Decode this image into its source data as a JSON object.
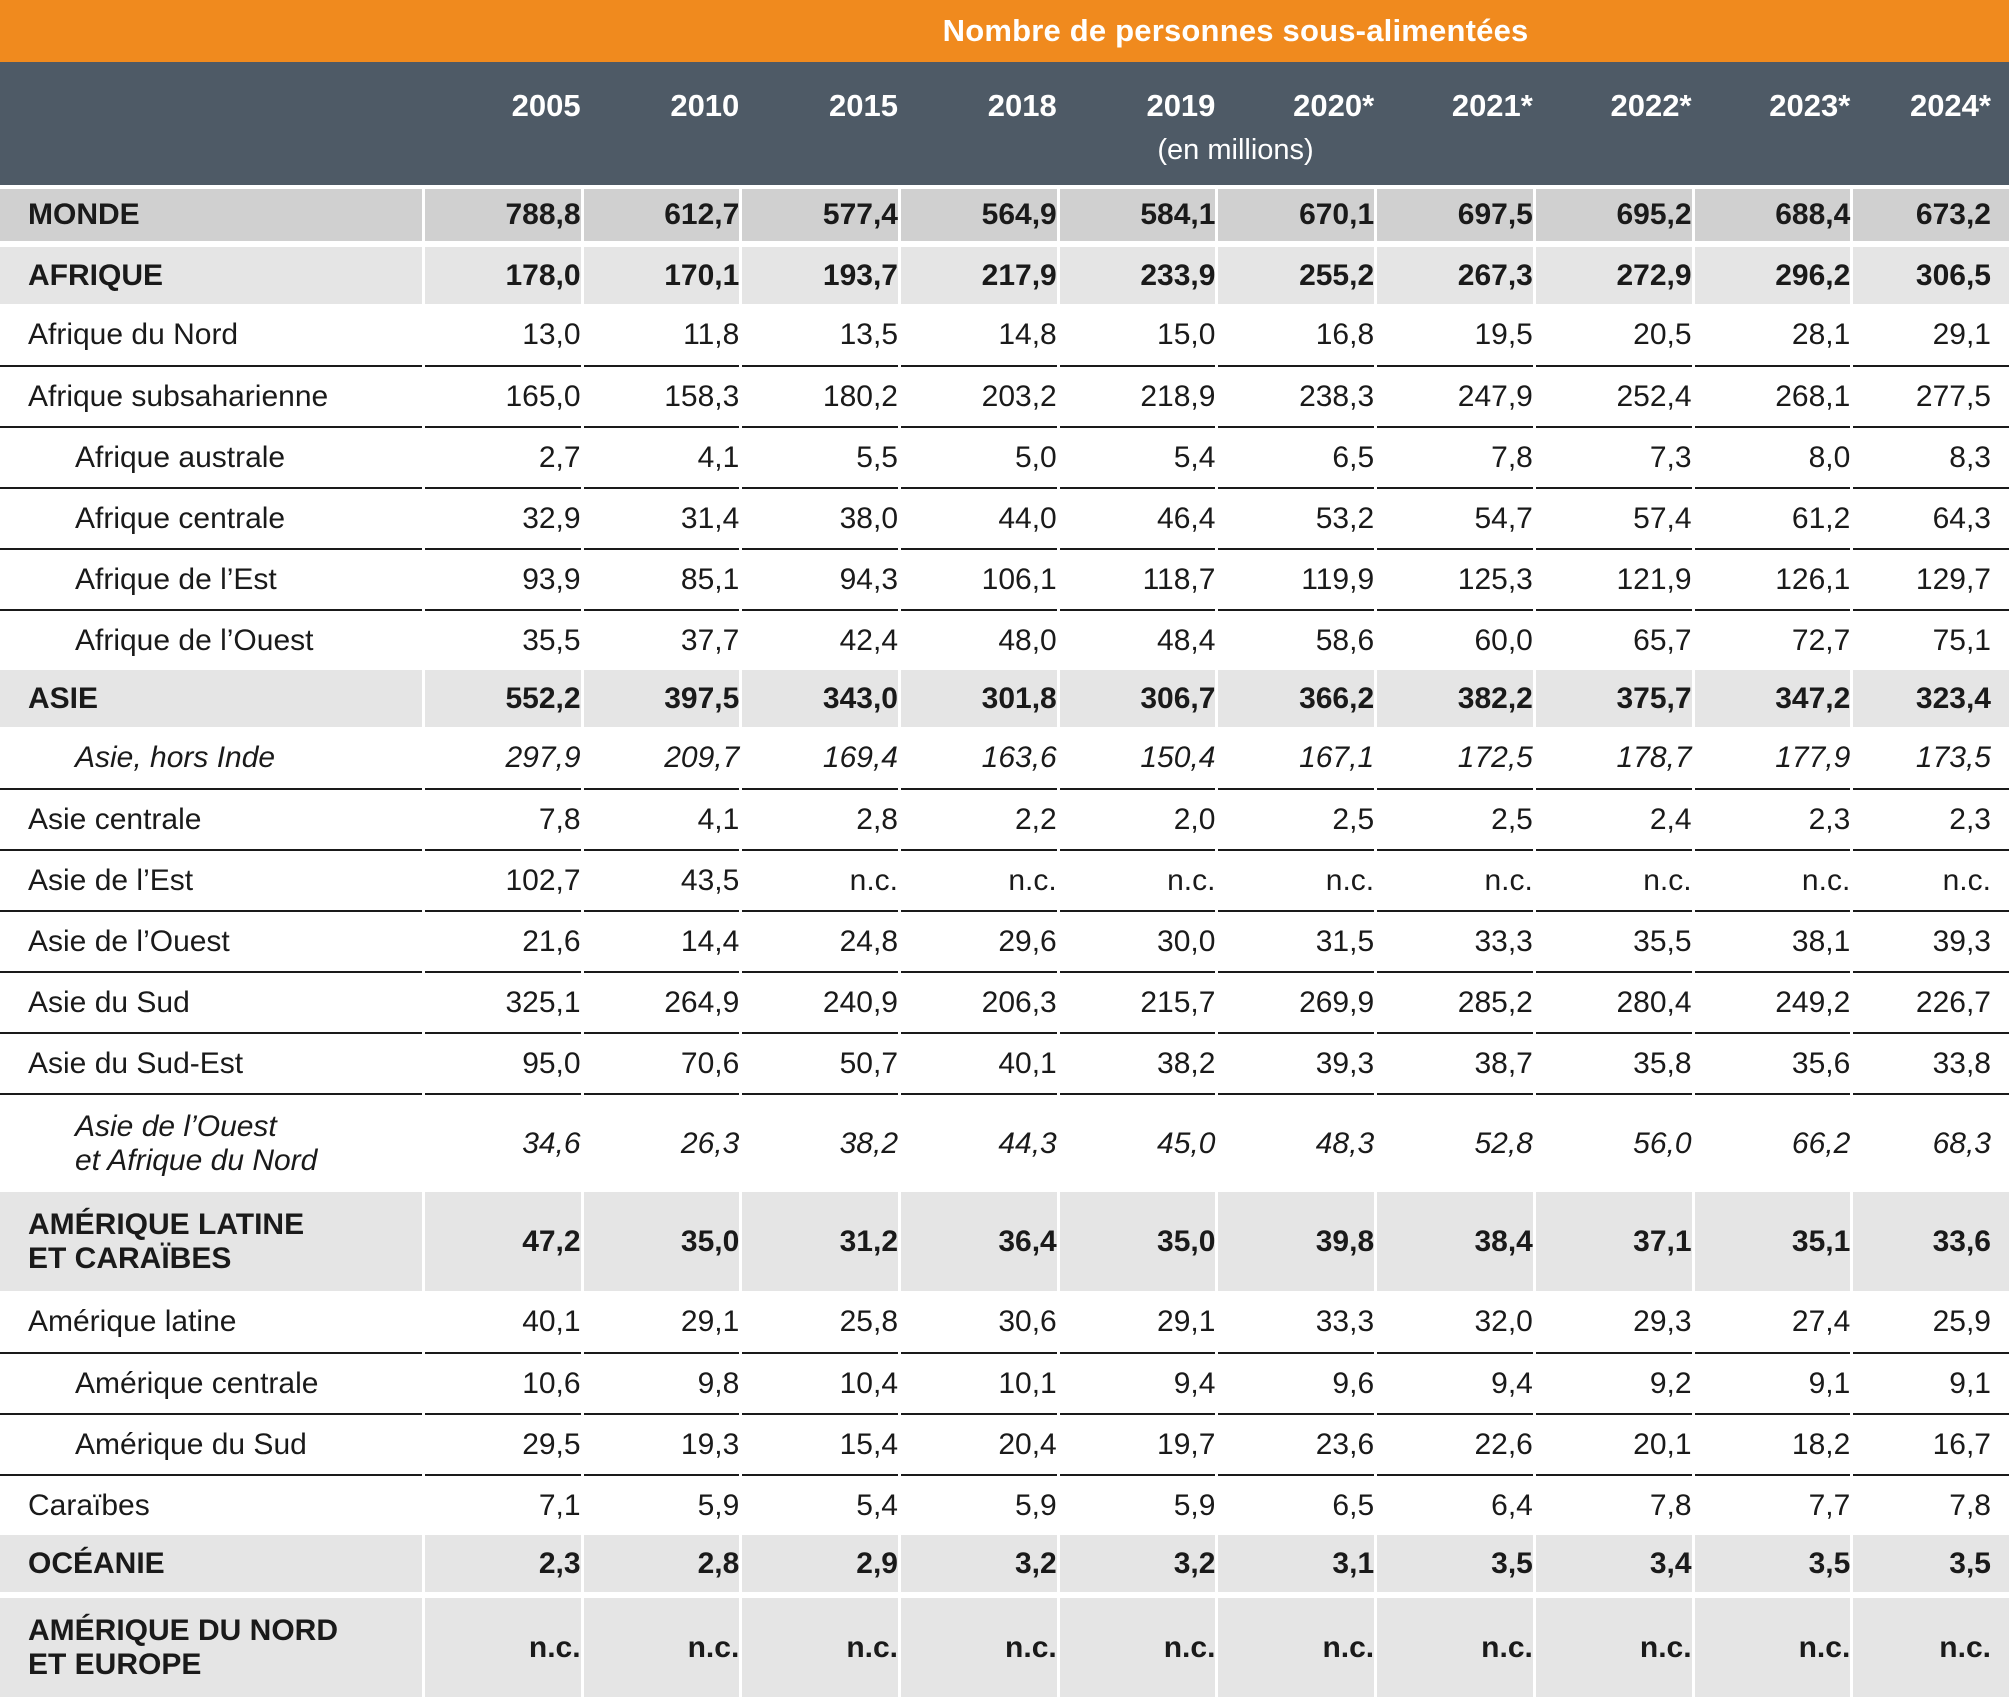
{
  "colors": {
    "orange": "#F08A1E",
    "slate": "#4E5A66",
    "row_total_bg": "#D0D0D0",
    "row_band_bg": "#E5E5E5",
    "rule": "#1A1A1A"
  },
  "chart_data": {
    "type": "table",
    "title": "Nombre de personnes sous-alimentées",
    "unit": "(en millions)",
    "columns": [
      "2005",
      "2010",
      "2015",
      "2018",
      "2019",
      "2020*",
      "2021*",
      "2022*",
      "2023*",
      "2024*"
    ],
    "rows": [
      {
        "label": "MONDE",
        "level": "total",
        "values": [
          "788,8",
          "612,7",
          "577,4",
          "564,9",
          "584,1",
          "670,1",
          "697,5",
          "695,2",
          "688,4",
          "673,2"
        ]
      },
      {
        "label": "AFRIQUE",
        "level": "region",
        "gap_before": true,
        "values": [
          "178,0",
          "170,1",
          "193,7",
          "217,9",
          "233,9",
          "255,2",
          "267,3",
          "272,9",
          "296,2",
          "306,5"
        ]
      },
      {
        "label": "Afrique du Nord",
        "level": "sub",
        "values": [
          "13,0",
          "11,8",
          "13,5",
          "14,8",
          "15,0",
          "16,8",
          "19,5",
          "20,5",
          "28,1",
          "29,1"
        ]
      },
      {
        "label": "Afrique subsaharienne",
        "level": "sub",
        "values": [
          "165,0",
          "158,3",
          "180,2",
          "203,2",
          "218,9",
          "238,3",
          "247,9",
          "252,4",
          "268,1",
          "277,5"
        ]
      },
      {
        "label": "Afrique australe",
        "level": "sub",
        "indent": true,
        "values": [
          "2,7",
          "4,1",
          "5,5",
          "5,0",
          "5,4",
          "6,5",
          "7,8",
          "7,3",
          "8,0",
          "8,3"
        ]
      },
      {
        "label": "Afrique centrale",
        "level": "sub",
        "indent": true,
        "values": [
          "32,9",
          "31,4",
          "38,0",
          "44,0",
          "46,4",
          "53,2",
          "54,7",
          "57,4",
          "61,2",
          "64,3"
        ]
      },
      {
        "label": "Afrique de l’Est",
        "level": "sub",
        "indent": true,
        "values": [
          "93,9",
          "85,1",
          "94,3",
          "106,1",
          "118,7",
          "119,9",
          "125,3",
          "121,9",
          "126,1",
          "129,7"
        ]
      },
      {
        "label": "Afrique de l’Ouest",
        "level": "sub",
        "indent": true,
        "values": [
          "35,5",
          "37,7",
          "42,4",
          "48,0",
          "48,4",
          "58,6",
          "60,0",
          "65,7",
          "72,7",
          "75,1"
        ]
      },
      {
        "label": "ASIE",
        "level": "region",
        "values": [
          "552,2",
          "397,5",
          "343,0",
          "301,8",
          "306,7",
          "366,2",
          "382,2",
          "375,7",
          "347,2",
          "323,4"
        ]
      },
      {
        "label": "Asie, hors Inde",
        "level": "sub",
        "indent": true,
        "italic": true,
        "values": [
          "297,9",
          "209,7",
          "169,4",
          "163,6",
          "150,4",
          "167,1",
          "172,5",
          "178,7",
          "177,9",
          "173,5"
        ]
      },
      {
        "label": "Asie centrale",
        "level": "sub",
        "values": [
          "7,8",
          "4,1",
          "2,8",
          "2,2",
          "2,0",
          "2,5",
          "2,5",
          "2,4",
          "2,3",
          "2,3"
        ]
      },
      {
        "label": "Asie de l’Est",
        "level": "sub",
        "values": [
          "102,7",
          "43,5",
          "n.c.",
          "n.c.",
          "n.c.",
          "n.c.",
          "n.c.",
          "n.c.",
          "n.c.",
          "n.c."
        ]
      },
      {
        "label": "Asie de l’Ouest",
        "level": "sub",
        "values": [
          "21,6",
          "14,4",
          "24,8",
          "29,6",
          "30,0",
          "31,5",
          "33,3",
          "35,5",
          "38,1",
          "39,3"
        ]
      },
      {
        "label": "Asie du Sud",
        "level": "sub",
        "values": [
          "325,1",
          "264,9",
          "240,9",
          "206,3",
          "215,7",
          "269,9",
          "285,2",
          "280,4",
          "249,2",
          "226,7"
        ]
      },
      {
        "label": "Asie du Sud-Est",
        "level": "sub",
        "values": [
          "95,0",
          "70,6",
          "50,7",
          "40,1",
          "38,2",
          "39,3",
          "38,7",
          "35,8",
          "35,6",
          "33,8"
        ]
      },
      {
        "label": "Asie de l’Ouest\net Afrique du Nord",
        "level": "sub",
        "indent": true,
        "italic": true,
        "values": [
          "34,6",
          "26,3",
          "38,2",
          "44,3",
          "45,0",
          "48,3",
          "52,8",
          "56,0",
          "66,2",
          "68,3"
        ]
      },
      {
        "label": "AMÉRIQUE LATINE\nET CARAÏBES",
        "level": "region",
        "values": [
          "47,2",
          "35,0",
          "31,2",
          "36,4",
          "35,0",
          "39,8",
          "38,4",
          "37,1",
          "35,1",
          "33,6"
        ]
      },
      {
        "label": "Amérique latine",
        "level": "sub",
        "values": [
          "40,1",
          "29,1",
          "25,8",
          "30,6",
          "29,1",
          "33,3",
          "32,0",
          "29,3",
          "27,4",
          "25,9"
        ]
      },
      {
        "label": "Amérique centrale",
        "level": "sub",
        "indent": true,
        "values": [
          "10,6",
          "9,8",
          "10,4",
          "10,1",
          "9,4",
          "9,6",
          "9,4",
          "9,2",
          "9,1",
          "9,1"
        ]
      },
      {
        "label": "Amérique du Sud",
        "level": "sub",
        "indent": true,
        "values": [
          "29,5",
          "19,3",
          "15,4",
          "20,4",
          "19,7",
          "23,6",
          "22,6",
          "20,1",
          "18,2",
          "16,7"
        ]
      },
      {
        "label": "Caraïbes",
        "level": "sub",
        "values": [
          "7,1",
          "5,9",
          "5,4",
          "5,9",
          "5,9",
          "6,5",
          "6,4",
          "7,8",
          "7,7",
          "7,8"
        ]
      },
      {
        "label": "OCÉANIE",
        "level": "region",
        "values": [
          "2,3",
          "2,8",
          "2,9",
          "3,2",
          "3,2",
          "3,1",
          "3,5",
          "3,4",
          "3,5",
          "3,5"
        ]
      },
      {
        "label": "AMÉRIQUE DU NORD\nET EUROPE",
        "level": "region",
        "gap_before": true,
        "values": [
          "n.c.",
          "n.c.",
          "n.c.",
          "n.c.",
          "n.c.",
          "n.c.",
          "n.c.",
          "n.c.",
          "n.c.",
          "n.c."
        ]
      }
    ]
  }
}
